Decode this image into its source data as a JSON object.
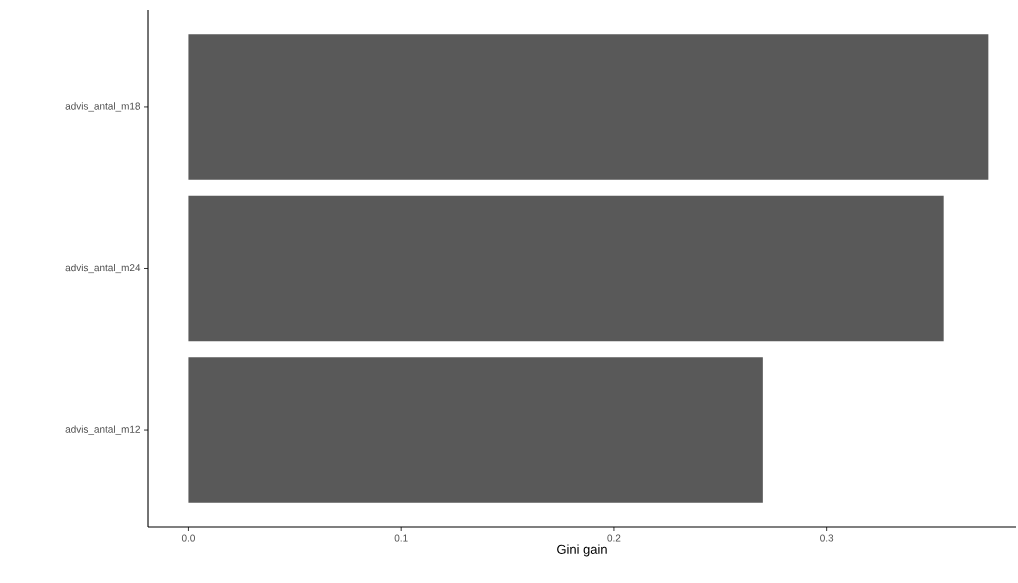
{
  "chart_data": {
    "type": "bar",
    "orientation": "horizontal",
    "xlabel": "Gini gain",
    "categories": [
      "advis_antal_m18",
      "advis_antal_m24",
      "advis_antal_m12"
    ],
    "values": [
      0.376,
      0.355,
      0.27
    ],
    "color": "#595959",
    "xlim": [
      -0.019,
      0.389
    ],
    "xticks": [
      {
        "value": 0,
        "label": "0.0"
      },
      {
        "value": 0.1,
        "label": "0.1"
      },
      {
        "value": 0.2,
        "label": "0.2"
      },
      {
        "value": 0.3,
        "label": "0.3"
      }
    ]
  }
}
